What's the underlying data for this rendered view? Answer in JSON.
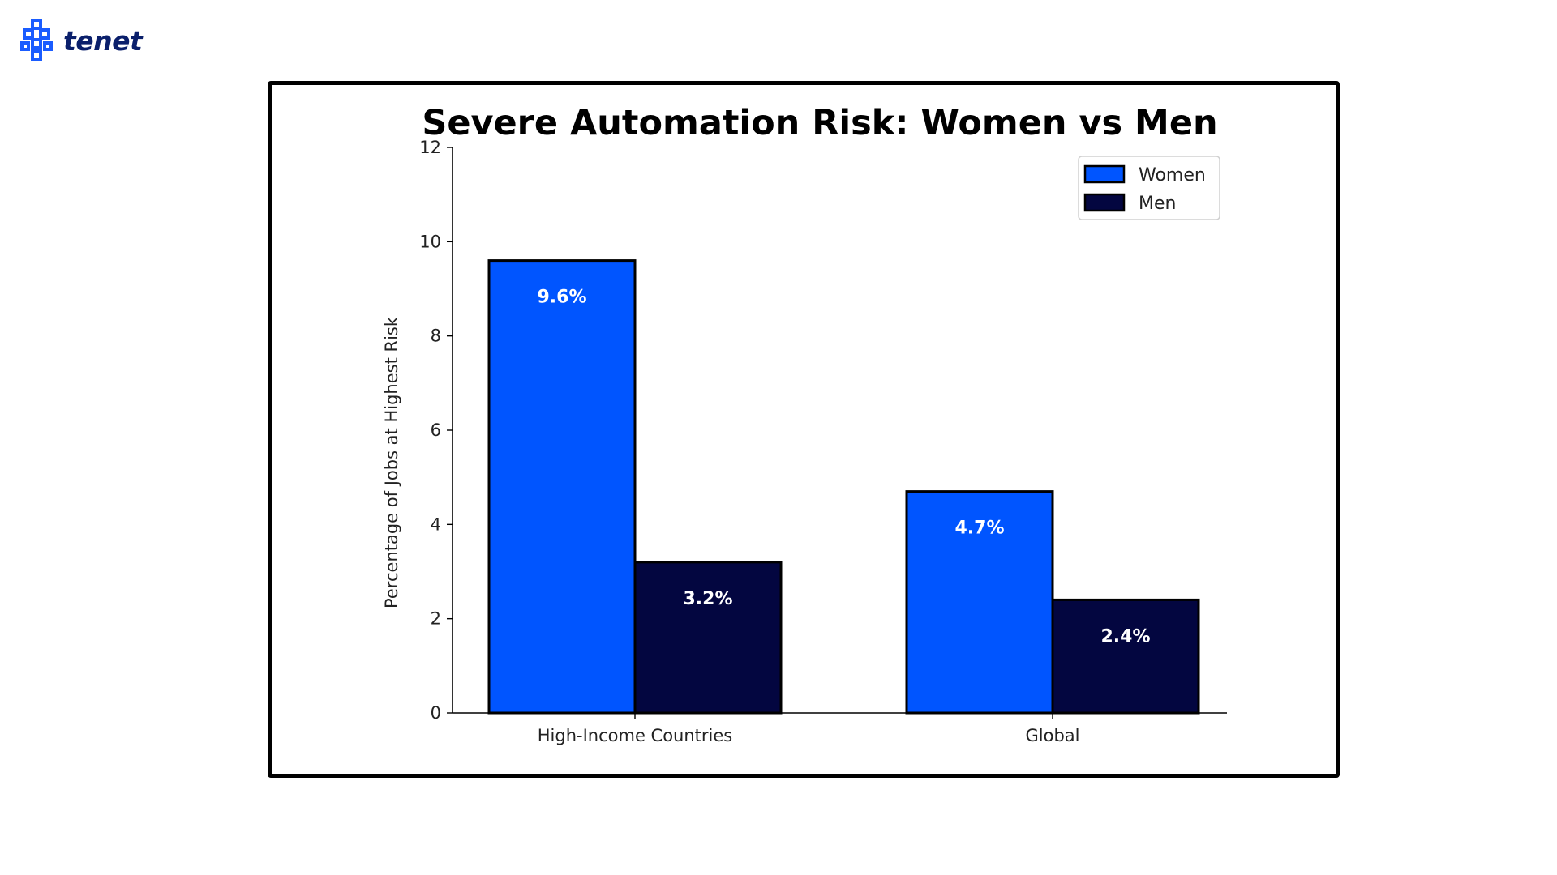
{
  "brand": {
    "name": "tenet",
    "icon": "tenet-logo-icon",
    "color": "#0a1f6b",
    "accent": "#1a5cff"
  },
  "chart_data": {
    "type": "bar",
    "title": "Severe Automation Risk: Women vs Men",
    "xlabel": "",
    "ylabel": "Percentage of Jobs at Highest Risk",
    "categories": [
      "High-Income Countries",
      "Global"
    ],
    "series": [
      {
        "name": "Women",
        "values": [
          9.6,
          4.7
        ],
        "labels": [
          "9.6%",
          "4.7%"
        ],
        "color": "#0055ff"
      },
      {
        "name": "Men",
        "values": [
          3.2,
          2.4
        ],
        "labels": [
          "3.2%",
          "2.4%"
        ],
        "color": "#030640"
      }
    ],
    "ylim": [
      0,
      12
    ],
    "yticks": [
      0,
      2,
      4,
      6,
      8,
      10,
      12
    ],
    "grid": false,
    "legend_position": "top-right"
  }
}
